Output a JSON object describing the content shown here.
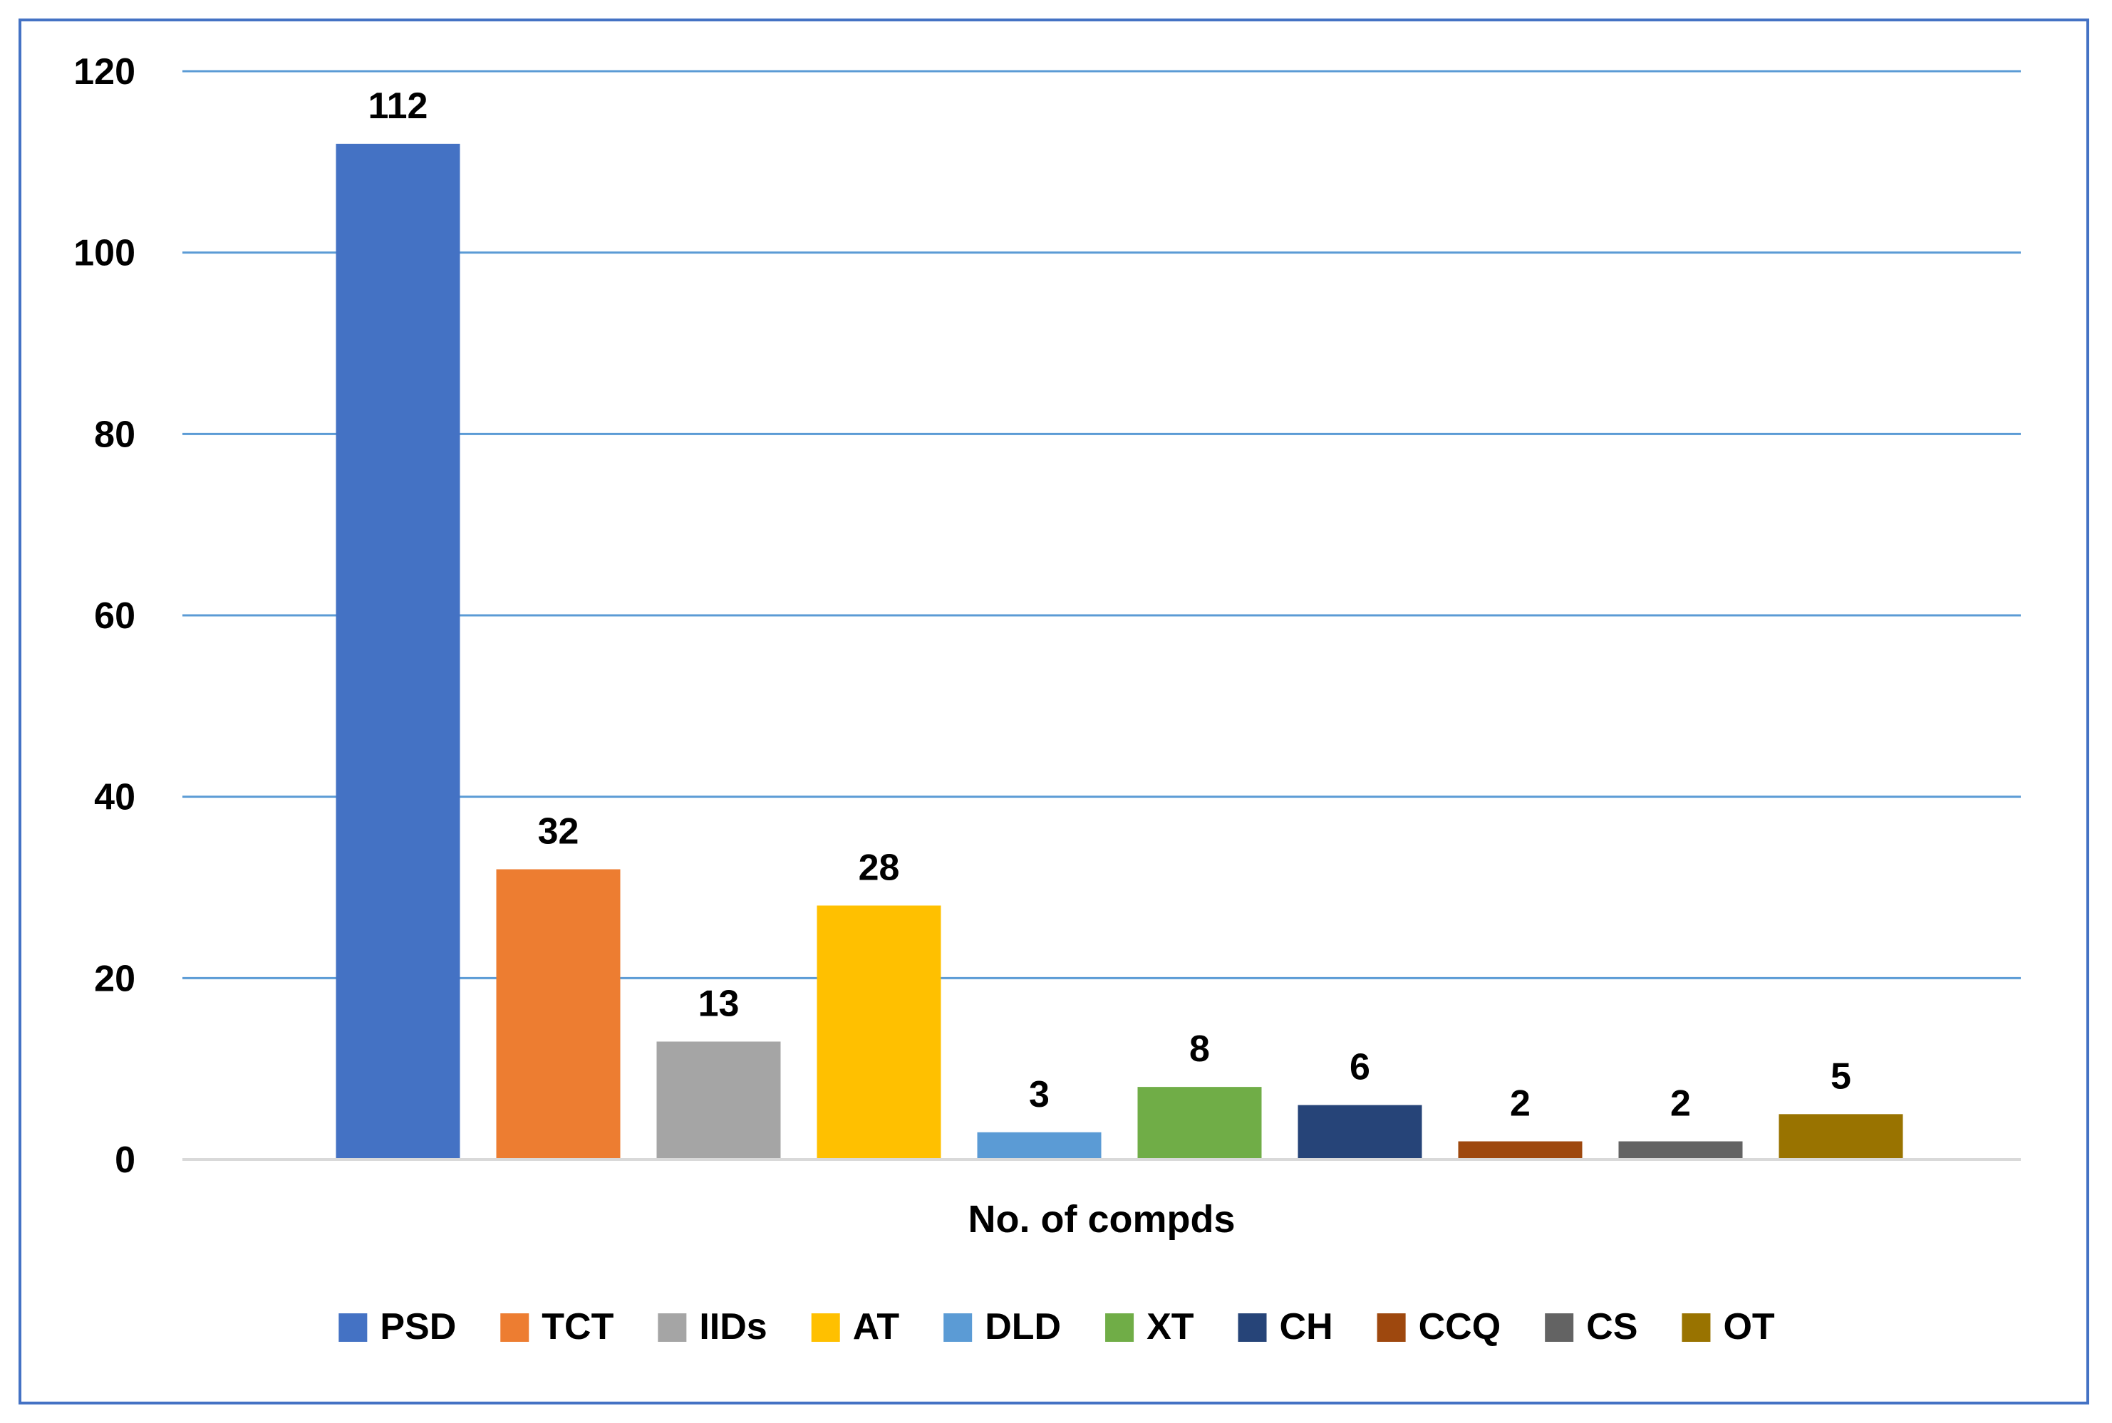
{
  "chart_data": {
    "type": "bar",
    "categories": [
      "PSD",
      "TCT",
      "IIDs",
      "AT",
      "DLD",
      "XT",
      "CH",
      "CCQ",
      "CS",
      "OT"
    ],
    "series": [
      {
        "values": [
          112,
          32,
          13,
          28,
          3,
          8,
          6,
          2,
          2,
          5
        ],
        "colors": [
          "#4472c4",
          "#ed7d31",
          "#a5a5a5",
          "#ffc000",
          "#5b9bd5",
          "#70ad47",
          "#264478",
          "#9e480e",
          "#636363",
          "#997300"
        ]
      }
    ],
    "title": "",
    "xlabel": "No. of compds",
    "ylabel": "",
    "ylim": [
      0,
      120
    ],
    "yticks": [
      "0",
      "20",
      "40",
      "60",
      "80",
      "100",
      "120"
    ],
    "grid": true,
    "gridline_color": "#5b9bd5",
    "legend_position": "bottom",
    "data_labels": true
  }
}
